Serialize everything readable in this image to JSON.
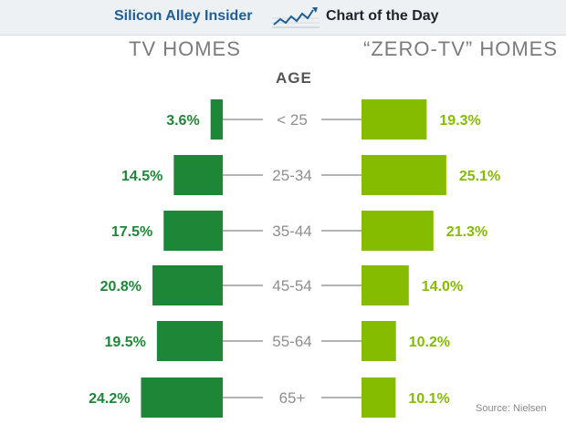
{
  "header": {
    "brand": "Silicon Alley Insider",
    "feature": "Chart of the Day",
    "icon": "trend-line-icon"
  },
  "colors": {
    "tv": "#1e8737",
    "zero_tv": "#86bc00",
    "age_text": "#8e8e8e",
    "connector": "#9a9a9a"
  },
  "chart_data": {
    "type": "bar",
    "layout": "back-to-back",
    "categories_title": "AGE",
    "categories": [
      "< 25",
      "25-34",
      "35-44",
      "45-54",
      "55-64",
      "65+"
    ],
    "series": [
      {
        "name": "TV HOMES",
        "values": [
          3.6,
          14.5,
          17.5,
          20.8,
          19.5,
          24.2
        ],
        "labels": [
          "3.6%",
          "14.5%",
          "17.5%",
          "20.8%",
          "19.5%",
          "24.2%"
        ]
      },
      {
        "name": "“ZERO-TV” HOMES",
        "values": [
          19.3,
          25.1,
          21.3,
          14.0,
          10.2,
          10.1
        ],
        "labels": [
          "19.3%",
          "25.1%",
          "21.3%",
          "14.0%",
          "10.2%",
          "10.1%"
        ]
      }
    ],
    "unit": "%",
    "source": "Source: Nielsen"
  }
}
